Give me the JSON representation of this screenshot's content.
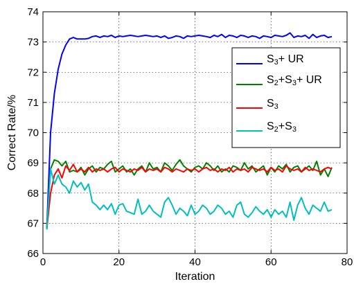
{
  "chart_data": {
    "type": "line",
    "xlabel": "Iteration",
    "ylabel": "Correct Rate/%",
    "xlim": [
      0,
      80
    ],
    "ylim": [
      66,
      74
    ],
    "xticks": [
      0,
      20,
      40,
      60,
      80
    ],
    "yticks": [
      66,
      67,
      68,
      69,
      70,
      71,
      72,
      73,
      74
    ],
    "grid": true,
    "legend_position": "right",
    "series": [
      {
        "name": "S3+ UR",
        "legend_parts": [
          [
            "S",
            ""
          ],
          [
            "3",
            "sub"
          ],
          [
            "+ UR",
            ""
          ]
        ],
        "color": "#0000ff",
        "values": [
          66.8,
          70.0,
          71.3,
          72.1,
          72.6,
          72.9,
          73.1,
          73.15,
          73.1,
          73.1,
          73.1,
          73.12,
          73.18,
          73.2,
          73.15,
          73.2,
          73.18,
          73.22,
          73.15,
          73.2,
          73.18,
          73.2,
          73.22,
          73.2,
          73.18,
          73.2,
          73.22,
          73.2,
          73.18,
          73.2,
          73.15,
          73.2,
          73.12,
          73.15,
          73.2,
          73.18,
          73.12,
          73.2,
          73.18,
          73.2,
          73.22,
          73.2,
          73.18,
          73.15,
          73.22,
          73.18,
          73.25,
          73.15,
          73.22,
          73.2,
          73.15,
          73.22,
          73.2,
          73.15,
          73.2,
          73.18,
          73.12,
          73.2,
          73.18,
          73.15,
          73.22,
          73.2,
          73.18,
          73.22,
          73.3,
          73.15,
          73.2,
          73.18,
          73.22,
          73.12,
          73.25,
          73.15,
          73.2,
          73.22,
          73.15,
          73.18
        ]
      },
      {
        "name": "S2+S3+ UR",
        "legend_parts": [
          [
            "S",
            ""
          ],
          [
            "2",
            "sub"
          ],
          [
            "+S",
            ""
          ],
          [
            "3",
            "sub"
          ],
          [
            "+ UR",
            ""
          ]
        ],
        "color": "#008000",
        "values": [
          66.8,
          68.8,
          69.1,
          69.05,
          68.9,
          69.05,
          68.7,
          68.75,
          68.7,
          68.85,
          68.6,
          68.8,
          68.9,
          68.7,
          68.85,
          68.8,
          68.95,
          69.05,
          68.7,
          68.8,
          68.9,
          68.7,
          68.8,
          68.6,
          68.8,
          68.9,
          68.7,
          69.0,
          68.8,
          68.85,
          68.7,
          69.0,
          68.9,
          68.75,
          68.95,
          69.1,
          68.9,
          68.8,
          68.7,
          68.85,
          68.9,
          68.8,
          69.0,
          68.9,
          68.75,
          68.9,
          68.7,
          68.8,
          68.7,
          68.9,
          68.85,
          68.75,
          69.0,
          68.8,
          68.9,
          68.7,
          68.8,
          68.9,
          68.6,
          68.85,
          68.7,
          68.9,
          68.8,
          68.95,
          68.7,
          68.85,
          68.9,
          68.7,
          68.8,
          68.9,
          68.75,
          69.05,
          68.6,
          68.8,
          68.55,
          68.85
        ]
      },
      {
        "name": "S3",
        "legend_parts": [
          [
            "S",
            ""
          ],
          [
            "3",
            "sub"
          ]
        ],
        "color": "#ff0000",
        "values": [
          66.8,
          68.0,
          68.6,
          68.8,
          68.5,
          68.9,
          68.75,
          68.95,
          68.7,
          68.8,
          68.7,
          68.85,
          68.7,
          68.8,
          68.75,
          68.8,
          68.7,
          68.8,
          68.85,
          68.7,
          68.8,
          68.75,
          68.7,
          68.8,
          68.75,
          68.85,
          68.7,
          68.8,
          68.75,
          68.8,
          68.7,
          68.85,
          68.8,
          68.7,
          68.8,
          68.75,
          68.7,
          68.8,
          68.75,
          68.8,
          68.7,
          68.8,
          68.85,
          68.75,
          68.8,
          68.7,
          68.8,
          68.75,
          68.85,
          68.7,
          68.8,
          68.75,
          68.8,
          68.7,
          68.85,
          68.8,
          68.75,
          68.8,
          68.7,
          68.85,
          68.75,
          68.8,
          68.7,
          68.9,
          68.8,
          68.75,
          68.8,
          68.7,
          68.85,
          68.75,
          68.8,
          68.75,
          68.7,
          68.8,
          68.85,
          68.8
        ]
      },
      {
        "name": "S2+S3",
        "legend_parts": [
          [
            "S",
            ""
          ],
          [
            "2",
            "sub"
          ],
          [
            "+S",
            ""
          ],
          [
            "3",
            "sub"
          ]
        ],
        "color": "#00bfbf",
        "values": [
          66.8,
          68.8,
          68.3,
          68.6,
          68.3,
          68.2,
          68.0,
          68.4,
          68.2,
          68.35,
          68.1,
          68.3,
          67.7,
          67.6,
          67.45,
          67.6,
          67.45,
          67.65,
          67.3,
          67.6,
          67.65,
          67.4,
          67.35,
          67.3,
          67.8,
          67.3,
          67.4,
          67.6,
          67.4,
          67.3,
          67.2,
          67.7,
          67.85,
          67.6,
          67.3,
          67.5,
          67.4,
          67.25,
          67.6,
          67.3,
          67.4,
          67.6,
          67.5,
          67.3,
          67.4,
          67.6,
          67.5,
          67.3,
          67.4,
          67.2,
          67.6,
          67.7,
          67.3,
          67.2,
          67.35,
          67.55,
          67.4,
          67.3,
          67.45,
          67.2,
          67.45,
          67.3,
          67.4,
          67.2,
          67.7,
          67.1,
          67.6,
          67.85,
          67.5,
          67.3,
          67.6,
          67.5,
          67.4,
          67.7,
          67.4,
          67.45
        ]
      }
    ]
  }
}
